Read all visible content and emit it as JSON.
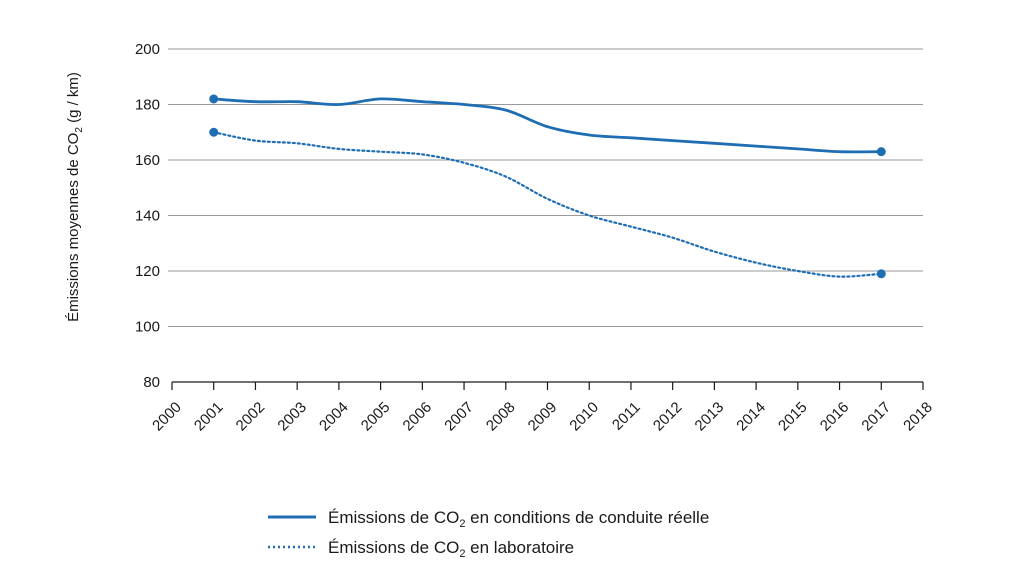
{
  "chart_data": {
    "type": "line",
    "title": "",
    "ylabel": {
      "before": "Émissions moyennes de CO",
      "sub": "2",
      "after": " (g / km)"
    },
    "xlabel": "",
    "ylim": [
      80,
      200
    ],
    "yticks": [
      80,
      100,
      120,
      140,
      160,
      180,
      200
    ],
    "xlim": [
      2000,
      2018
    ],
    "xticks": [
      "2000",
      "2001",
      "2002",
      "2003",
      "2004",
      "2005",
      "2006",
      "2007",
      "2008",
      "2009",
      "2010",
      "2011",
      "2012",
      "2013",
      "2014",
      "2015",
      "2016",
      "2017",
      "2018"
    ],
    "grid": true,
    "legend_position": "bottom",
    "colors": {
      "line": "#1f6db3",
      "grid": "#9a9a9a",
      "axis": "#1a1a1a"
    },
    "series": [
      {
        "name": "Émissions de CO2 en conditions de conduite réelle",
        "legend": {
          "before": "Émissions de CO",
          "sub": "2",
          "after": " en conditions de conduite réelle"
        },
        "style": "solid",
        "x": [
          2001,
          2002,
          2003,
          2004,
          2005,
          2006,
          2007,
          2008,
          2009,
          2010,
          2011,
          2012,
          2013,
          2014,
          2015,
          2016,
          2017
        ],
        "values": [
          182,
          181,
          181,
          180,
          182,
          181,
          180,
          178,
          172,
          169,
          168,
          167,
          166,
          165,
          164,
          163,
          163
        ]
      },
      {
        "name": "Émissions de CO2 en laboratoire",
        "legend": {
          "before": "Émissions de CO",
          "sub": "2",
          "after": " en laboratoire"
        },
        "style": "dotted",
        "x": [
          2001,
          2002,
          2003,
          2004,
          2005,
          2006,
          2007,
          2008,
          2009,
          2010,
          2011,
          2012,
          2013,
          2014,
          2015,
          2016,
          2017
        ],
        "values": [
          170,
          167,
          166,
          164,
          163,
          162,
          159,
          154,
          146,
          140,
          136,
          132,
          127,
          123,
          120,
          118,
          119
        ]
      }
    ]
  }
}
